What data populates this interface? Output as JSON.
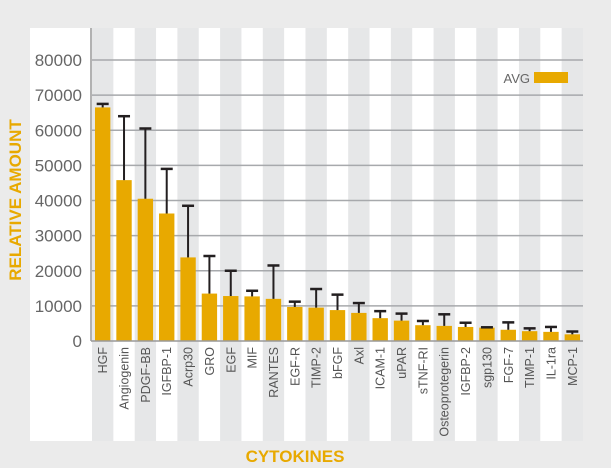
{
  "chart_data": {
    "type": "bar",
    "title": "",
    "xlabel": "CYTOKINES",
    "ylabel": "RELATIVE AMOUNT",
    "ylim": [
      0,
      80000
    ],
    "yticks": [
      0,
      10000,
      20000,
      30000,
      40000,
      50000,
      60000,
      70000,
      80000
    ],
    "grid": true,
    "legend": {
      "placement": "top-right",
      "entries": [
        "AVG"
      ]
    },
    "bar_color": "#e8a900",
    "categories": [
      "HGF",
      "Angiogenin",
      "PDGF-BB",
      "IGFBP-1",
      "Acrp30",
      "GRO",
      "EGF",
      "MIF",
      "RANTES",
      "EGF-R",
      "TIMP-2",
      "bFGF",
      "Axl",
      "ICAM-1",
      "uPAR",
      "sTNF-RI",
      "Osteoprotegerin",
      "IGFBP-2",
      "sgp130",
      "FGF-7",
      "TIMP-1",
      "IL-1ra",
      "MCP-1"
    ],
    "series": [
      {
        "name": "AVG",
        "values": [
          66500,
          45800,
          40500,
          36300,
          23800,
          13500,
          12800,
          12700,
          12000,
          9700,
          9500,
          8800,
          8000,
          6500,
          5800,
          4500,
          4300,
          4000,
          3800,
          3200,
          2800,
          2600,
          1900
        ],
        "error_upper": [
          67500,
          64000,
          60500,
          49000,
          38500,
          24200,
          20000,
          14300,
          21500,
          11200,
          14800,
          13200,
          10800,
          8500,
          7800,
          5700,
          7600,
          5200,
          3900,
          5300,
          3600,
          4000,
          2700
        ]
      }
    ]
  }
}
